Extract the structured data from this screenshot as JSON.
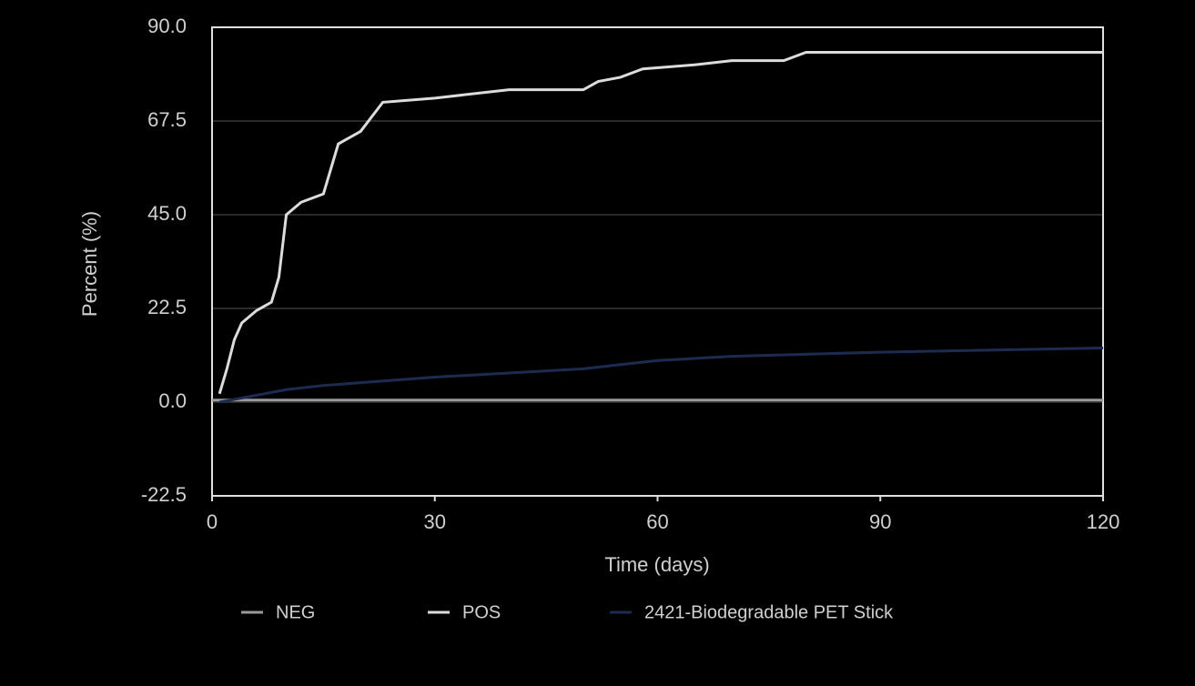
{
  "chart_data": {
    "type": "line",
    "x_label": "Time (days)",
    "y_label": "Percent (%)",
    "xlim": [
      0,
      120
    ],
    "xticks": [
      0,
      30,
      60,
      90,
      120
    ],
    "ylim": [
      -22.5,
      90
    ],
    "yticks": [
      {
        "value": -22.5,
        "label": "-22.5"
      },
      {
        "value": 0,
        "label": "0.0"
      },
      22.5,
      {
        "value": 45,
        "label": "45.0"
      },
      67.5,
      {
        "value": 90,
        "label": "90.0"
      }
    ],
    "grid": true,
    "legend": "bottom",
    "series": [
      {
        "name": "NEG",
        "color": "#9a9a9a",
        "x": [
          0,
          30,
          60,
          90,
          120
        ],
        "values": [
          0.5,
          0.5,
          0.5,
          0.5,
          0.5
        ]
      },
      {
        "name": "POS",
        "color": "#dcdcdc",
        "x": [
          1,
          2,
          3,
          4,
          6,
          8,
          9,
          10,
          12,
          15,
          17,
          20,
          23,
          30,
          40,
          50,
          52,
          55,
          58,
          65,
          70,
          77,
          80,
          90,
          120
        ],
        "values": [
          2,
          8,
          15,
          19,
          22,
          24,
          30,
          45,
          48,
          50,
          62,
          65,
          72,
          73,
          75,
          75,
          77,
          78,
          80,
          81,
          82,
          82,
          84,
          84,
          84
        ]
      },
      {
        "name": "2421-Biodegradable PET Stick",
        "color": "#1c2c50",
        "x": [
          1,
          10,
          15,
          30,
          50,
          55,
          60,
          70,
          90,
          120
        ],
        "values": [
          0,
          3,
          4,
          6,
          8,
          9,
          10,
          11,
          12,
          13
        ]
      }
    ]
  }
}
